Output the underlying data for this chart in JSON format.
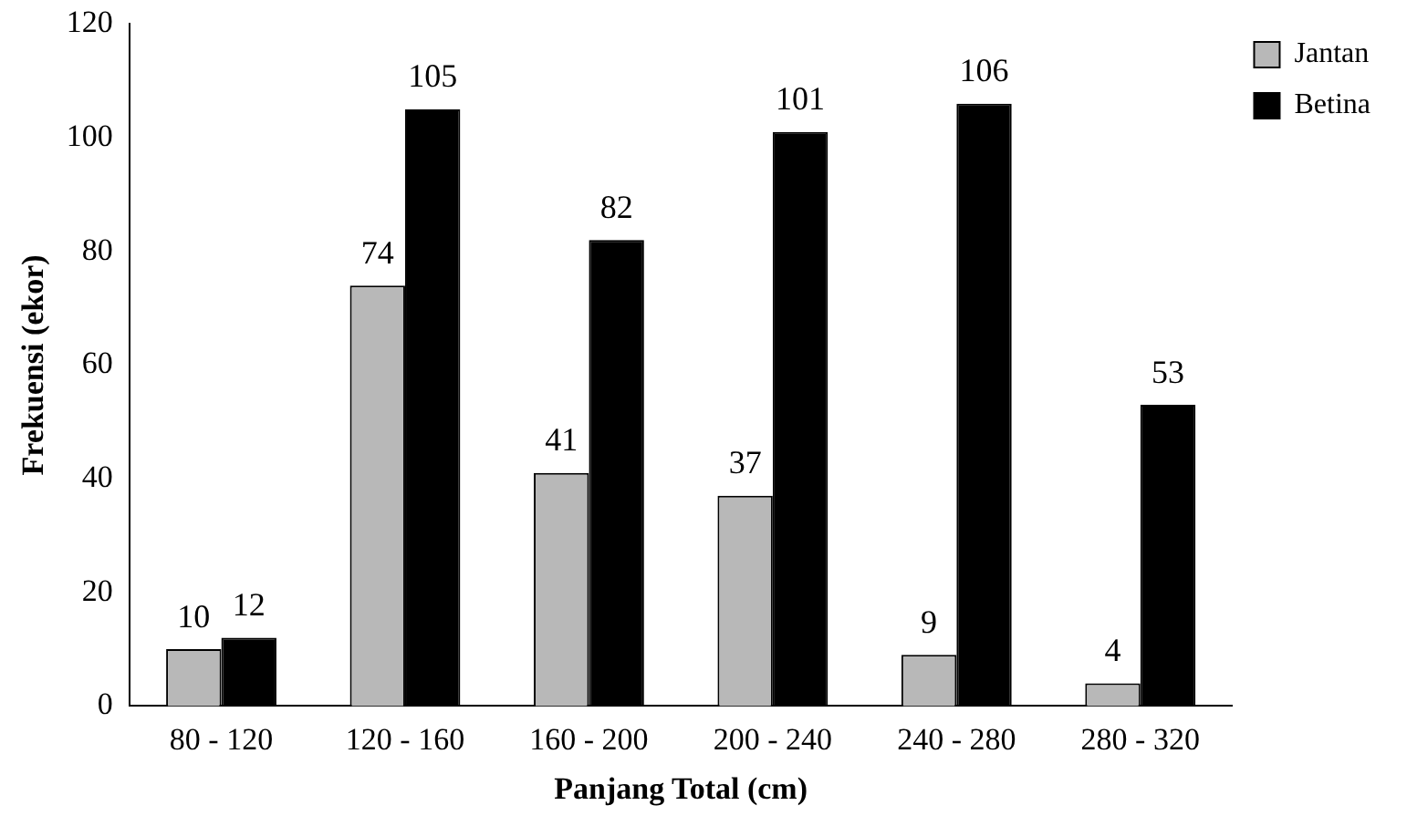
{
  "chart_data": {
    "type": "bar",
    "xlabel": "Panjang Total (cm)",
    "ylabel": "Frekuensi (ekor)",
    "categories": [
      "80 - 120",
      "120 - 160",
      "160 - 200",
      "200 - 240",
      "240 - 280",
      "280 - 320"
    ],
    "series": [
      {
        "name": "Jantan",
        "color": "#b8b8b8",
        "values": [
          10,
          74,
          41,
          37,
          9,
          4
        ]
      },
      {
        "name": "Betina",
        "color": "#000000",
        "values": [
          12,
          105,
          82,
          101,
          106,
          53
        ]
      }
    ],
    "ylim": [
      0,
      120
    ],
    "yticks": [
      0,
      20,
      40,
      60,
      80,
      100,
      120
    ],
    "grid": false,
    "legend": "top right",
    "data_labels": true
  }
}
